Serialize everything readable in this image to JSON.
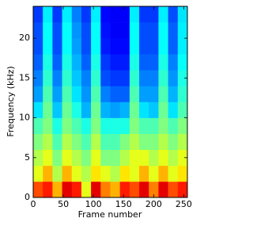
{
  "chart_data": {
    "type": "heatmap",
    "xlabel": "Frame number",
    "ylabel": "Frequency (kHz)",
    "xlim": [
      0,
      256
    ],
    "ylim": [
      0,
      24
    ],
    "xticks": [
      0,
      50,
      100,
      150,
      200,
      250
    ],
    "yticks": [
      0,
      5,
      10,
      15,
      20
    ],
    "colormap": "jet",
    "clim": [
      0,
      1
    ],
    "x_bins": [
      0,
      16,
      32,
      48,
      64,
      80,
      96,
      112,
      128,
      144,
      160,
      176,
      192,
      208,
      224,
      240,
      256
    ],
    "y_bins": [
      0,
      2,
      4,
      6,
      8,
      10,
      12,
      14,
      16,
      18,
      20,
      22,
      24
    ],
    "values": [
      [
        0.8,
        0.85,
        0.7,
        0.9,
        0.85,
        0.6,
        0.9,
        0.75,
        0.7,
        0.85,
        0.8,
        0.9,
        0.75,
        0.9,
        0.8,
        0.85
      ],
      [
        0.6,
        0.7,
        0.55,
        0.7,
        0.6,
        0.55,
        0.65,
        0.6,
        0.55,
        0.65,
        0.6,
        0.7,
        0.6,
        0.7,
        0.6,
        0.65
      ],
      [
        0.55,
        0.6,
        0.5,
        0.6,
        0.55,
        0.5,
        0.6,
        0.5,
        0.5,
        0.55,
        0.6,
        0.6,
        0.55,
        0.6,
        0.55,
        0.6
      ],
      [
        0.5,
        0.55,
        0.45,
        0.55,
        0.5,
        0.45,
        0.55,
        0.45,
        0.45,
        0.5,
        0.55,
        0.5,
        0.5,
        0.55,
        0.5,
        0.55
      ],
      [
        0.45,
        0.5,
        0.4,
        0.5,
        0.45,
        0.4,
        0.5,
        0.4,
        0.4,
        0.4,
        0.5,
        0.45,
        0.45,
        0.5,
        0.45,
        0.5
      ],
      [
        0.35,
        0.48,
        0.32,
        0.48,
        0.4,
        0.3,
        0.48,
        0.3,
        0.28,
        0.3,
        0.48,
        0.35,
        0.32,
        0.48,
        0.35,
        0.45
      ],
      [
        0.28,
        0.45,
        0.28,
        0.45,
        0.35,
        0.27,
        0.45,
        0.25,
        0.22,
        0.22,
        0.45,
        0.28,
        0.28,
        0.45,
        0.3,
        0.42
      ],
      [
        0.25,
        0.42,
        0.25,
        0.42,
        0.32,
        0.25,
        0.42,
        0.2,
        0.18,
        0.18,
        0.42,
        0.25,
        0.25,
        0.42,
        0.27,
        0.4
      ],
      [
        0.22,
        0.4,
        0.22,
        0.4,
        0.3,
        0.22,
        0.4,
        0.18,
        0.15,
        0.15,
        0.4,
        0.22,
        0.22,
        0.4,
        0.25,
        0.38
      ],
      [
        0.2,
        0.38,
        0.2,
        0.38,
        0.28,
        0.2,
        0.38,
        0.15,
        0.13,
        0.13,
        0.38,
        0.2,
        0.2,
        0.38,
        0.22,
        0.36
      ],
      [
        0.2,
        0.38,
        0.2,
        0.38,
        0.27,
        0.2,
        0.38,
        0.14,
        0.12,
        0.12,
        0.38,
        0.2,
        0.2,
        0.38,
        0.22,
        0.36
      ],
      [
        0.18,
        0.36,
        0.18,
        0.36,
        0.25,
        0.18,
        0.36,
        0.13,
        0.12,
        0.12,
        0.36,
        0.18,
        0.18,
        0.36,
        0.2,
        0.35
      ]
    ]
  }
}
